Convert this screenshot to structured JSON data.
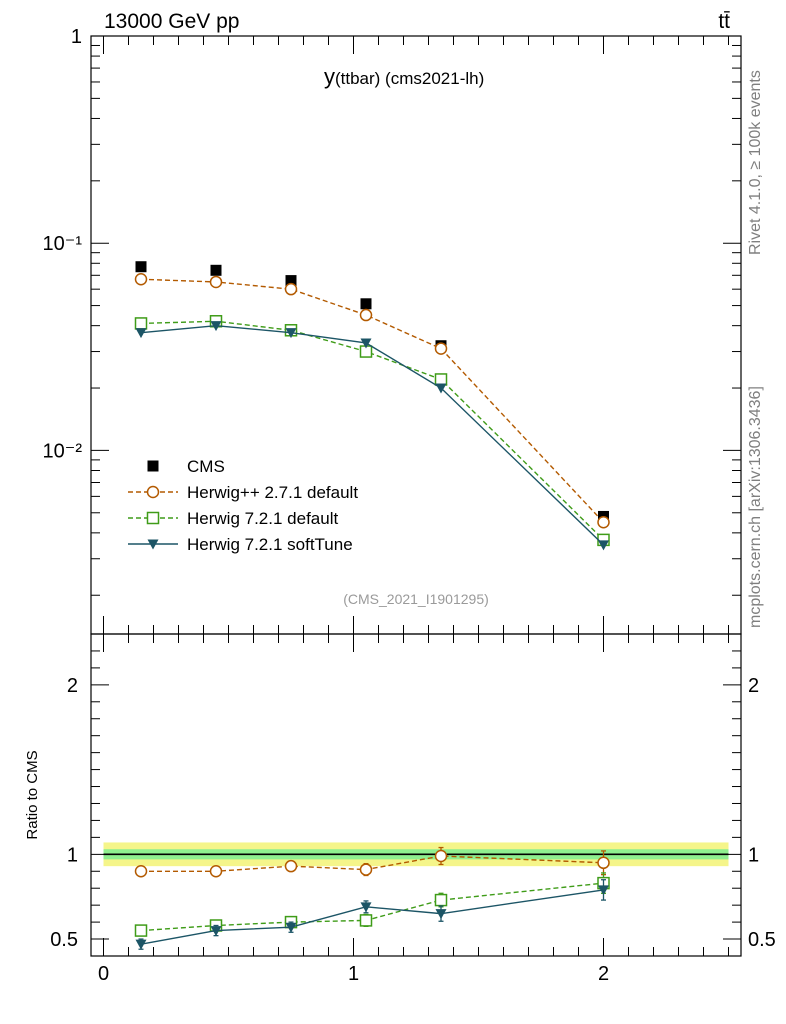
{
  "header": {
    "energy_label": "13000 GeV pp",
    "process_label": "tt̄"
  },
  "side": {
    "rivet_label": "Rivet 4.1.0, ≥ 100k events",
    "source_label": "mcplots.cern.ch [arXiv:1306.3436]"
  },
  "chart_data": {
    "type": "line",
    "title": "y(ttbar) (cms2021-lh)",
    "title_main": "y",
    "title_sub": "(ttbar) (cms2021-lh)",
    "analysis_label": "(CMS_2021_I1901295)",
    "xlabel": "",
    "ylabel_main": "",
    "ylabel_ratio": "Ratio to CMS",
    "yscale_main": "log",
    "xlim": [
      -0.05,
      2.55
    ],
    "ylim_main": [
      0.0013,
      1
    ],
    "ylim_ratio": [
      0.4,
      2.3
    ],
    "x_ticks": [
      0,
      1,
      2
    ],
    "x_tick_labels": [
      "0",
      "1",
      "2"
    ],
    "y_ticks_main": [
      1,
      0.1,
      0.01
    ],
    "y_tick_labels_main": [
      "1",
      "10⁻¹",
      "10⁻²"
    ],
    "y_ticks_ratio": [
      0.5,
      1,
      2
    ],
    "y_tick_labels_ratio": [
      "0.5",
      "1",
      "2"
    ],
    "x": [
      0.15,
      0.45,
      0.75,
      1.05,
      1.35,
      2.0
    ],
    "band": {
      "inner": 0.03,
      "outer": 0.07,
      "inner_color": "#8fef8f",
      "outer_color": "#f5f58a"
    },
    "series": [
      {
        "name": "CMS",
        "color": "#000000",
        "marker": "square-filled",
        "line": "none",
        "values": [
          0.077,
          0.074,
          0.066,
          0.051,
          0.032,
          0.0048
        ],
        "ratio": [
          1,
          1,
          1,
          1,
          1,
          1
        ]
      },
      {
        "name": "Herwig++ 2.7.1 default",
        "color": "#b35a00",
        "marker": "circle-open",
        "line": "dashed",
        "values": [
          0.067,
          0.065,
          0.06,
          0.045,
          0.031,
          0.0045
        ],
        "ratio": [
          0.9,
          0.9,
          0.93,
          0.91,
          0.99,
          0.95
        ],
        "ratio_err": [
          0.03,
          0.03,
          0.03,
          0.035,
          0.05,
          0.07
        ]
      },
      {
        "name": "Herwig 7.2.1 default",
        "color": "#3f9c18",
        "marker": "square-open",
        "line": "dashed",
        "values": [
          0.041,
          0.042,
          0.038,
          0.03,
          0.022,
          0.0037
        ],
        "ratio": [
          0.55,
          0.58,
          0.6,
          0.61,
          0.73,
          0.83
        ],
        "ratio_err": [
          0.025,
          0.025,
          0.03,
          0.035,
          0.04,
          0.06
        ]
      },
      {
        "name": "Herwig 7.2.1 softTune",
        "color": "#1c5566",
        "marker": "triangle-down-filled",
        "line": "solid",
        "values": [
          0.037,
          0.04,
          0.037,
          0.033,
          0.02,
          0.0035
        ],
        "ratio": [
          0.47,
          0.55,
          0.57,
          0.69,
          0.65,
          0.79
        ],
        "ratio_err": [
          0.03,
          0.03,
          0.03,
          0.035,
          0.045,
          0.06
        ]
      }
    ]
  }
}
